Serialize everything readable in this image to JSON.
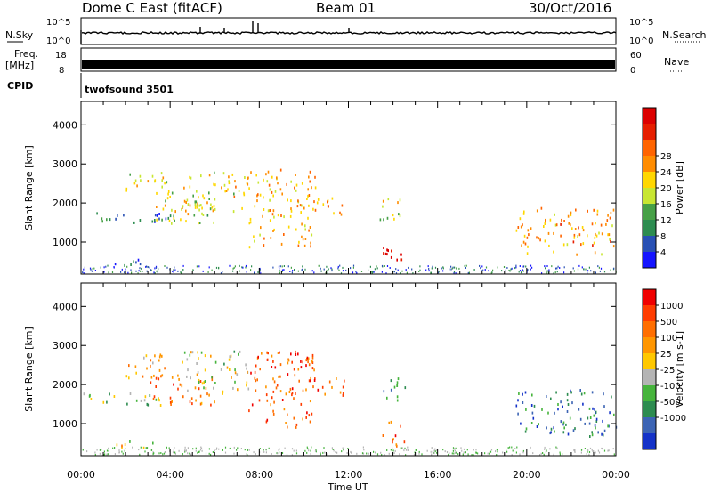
{
  "header": {
    "station": "Dome C East (fitACF)",
    "beam": "Beam 01",
    "date": "30/Oct/2016"
  },
  "top_panels": {
    "nsky_label": "N.Sky",
    "nsky_ticks": [
      "10^5",
      "10^0"
    ],
    "nsearch_label": "N.Search",
    "nsearch_ticks": [
      "10^5",
      "10^0"
    ],
    "freq_label": "Freq.",
    "freq_unit": "[MHz]",
    "freq_ticks": [
      "18",
      "8"
    ],
    "nave_label": "Nave",
    "nave_ticks": [
      "60",
      "0"
    ],
    "cpid_label": "CPID",
    "cpid_value": "twofsound 3501"
  },
  "chart_data": [
    {
      "type": "heatmap",
      "name": "power",
      "xlabel": "Time UT",
      "ylabel": "Slant Range [km]",
      "x_range_hours": [
        0,
        24
      ],
      "ylim_km": [
        180,
        4600
      ],
      "x_ticks": [
        "00:00",
        "04:00",
        "08:00",
        "12:00",
        "16:00",
        "20:00",
        "00:00"
      ],
      "y_ticks": [
        1000,
        2000,
        3000,
        4000
      ],
      "colorbar": {
        "label": "Power [dB]",
        "ticks": [
          "4",
          "8",
          "12",
          "16",
          "20",
          "24",
          "28"
        ],
        "colors": [
          "#1414ff",
          "#2850b4",
          "#2d8c50",
          "#46a046",
          "#c8e632",
          "#ffd700",
          "#ff8c00",
          "#ff6400",
          "#e61e00",
          "#dc0000"
        ]
      },
      "echo_regions": [
        {
          "t": [
            0.0,
            4.0
          ],
          "r": [
            1500,
            1800
          ],
          "v": 0.2
        },
        {
          "t": [
            1.5,
            3.2
          ],
          "r": [
            400,
            650
          ],
          "v": 0.15
        },
        {
          "t": [
            2.0,
            4.0
          ],
          "r": [
            2200,
            2800
          ],
          "v": 0.5
        },
        {
          "t": [
            3.0,
            6.0
          ],
          "r": [
            1500,
            2300
          ],
          "v": 0.45
        },
        {
          "t": [
            4.5,
            7.5
          ],
          "r": [
            1800,
            2900
          ],
          "v": 0.55
        },
        {
          "t": [
            7.5,
            10.5
          ],
          "r": [
            900,
            2900
          ],
          "v": 0.6
        },
        {
          "t": [
            10.0,
            11.8
          ],
          "r": [
            1700,
            2200
          ],
          "v": 0.7
        },
        {
          "t": [
            13.4,
            14.6
          ],
          "r": [
            1600,
            2200
          ],
          "v": 0.5
        },
        {
          "t": [
            13.5,
            14.5
          ],
          "r": [
            450,
            1100
          ],
          "v": 0.95
        },
        {
          "t": [
            19.5,
            24.0
          ],
          "r": [
            700,
            1900
          ],
          "v": 0.65
        }
      ]
    },
    {
      "type": "heatmap",
      "name": "velocity",
      "xlabel": "Time UT",
      "ylabel": "Slant Range [km]",
      "x_range_hours": [
        0,
        24
      ],
      "ylim_km": [
        180,
        4600
      ],
      "x_ticks": [
        "00:00",
        "04:00",
        "08:00",
        "12:00",
        "16:00",
        "20:00",
        "00:00"
      ],
      "y_ticks": [
        1000,
        2000,
        3000,
        4000
      ],
      "colorbar": {
        "label": "Velocity [m s-1]",
        "ticks": [
          "1000",
          "500",
          "100",
          "25",
          "-25",
          "-100",
          "-500",
          "-1000"
        ],
        "colors": [
          "#1432c8",
          "#3c64b4",
          "#2d8c50",
          "#46b43c",
          "#b4b4b4",
          "#ffc800",
          "#ff9600",
          "#ff6e00",
          "#ff3c00",
          "#f00000"
        ]
      },
      "echo_regions": [
        {
          "t": [
            0.0,
            4.0
          ],
          "r": [
            1500,
            1800
          ],
          "v": 0.4
        },
        {
          "t": [
            1.5,
            3.2
          ],
          "r": [
            400,
            650
          ],
          "v": 0.55
        },
        {
          "t": [
            2.0,
            4.0
          ],
          "r": [
            2200,
            2800
          ],
          "v": 0.6
        },
        {
          "t": [
            3.0,
            6.0
          ],
          "r": [
            1500,
            2300
          ],
          "v": 0.75
        },
        {
          "t": [
            4.5,
            7.5
          ],
          "r": [
            1800,
            2900
          ],
          "v": 0.45
        },
        {
          "t": [
            7.5,
            10.5
          ],
          "r": [
            900,
            2900
          ],
          "v": 0.8
        },
        {
          "t": [
            10.0,
            11.8
          ],
          "r": [
            1700,
            2200
          ],
          "v": 0.8
        },
        {
          "t": [
            13.4,
            14.6
          ],
          "r": [
            1600,
            2200
          ],
          "v": 0.3
        },
        {
          "t": [
            13.5,
            14.5
          ],
          "r": [
            450,
            1100
          ],
          "v": 0.85
        },
        {
          "t": [
            19.5,
            24.0
          ],
          "r": [
            700,
            1900
          ],
          "v": 0.2
        }
      ]
    }
  ]
}
